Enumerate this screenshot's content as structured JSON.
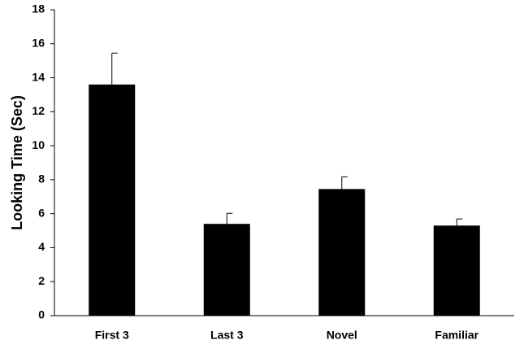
{
  "chart_data": {
    "type": "bar",
    "y_label": "Looking Time (Sec)",
    "categories": [
      "First 3",
      "Last 3",
      "Novel",
      "Familiar"
    ],
    "values": [
      13.6,
      5.4,
      7.45,
      5.3
    ],
    "errors": [
      1.85,
      0.62,
      0.72,
      0.39
    ],
    "color": "#000000",
    "ylim": [
      0,
      18
    ],
    "yticks": [
      0,
      2,
      4,
      6,
      8,
      10,
      12,
      14,
      16,
      18
    ]
  }
}
